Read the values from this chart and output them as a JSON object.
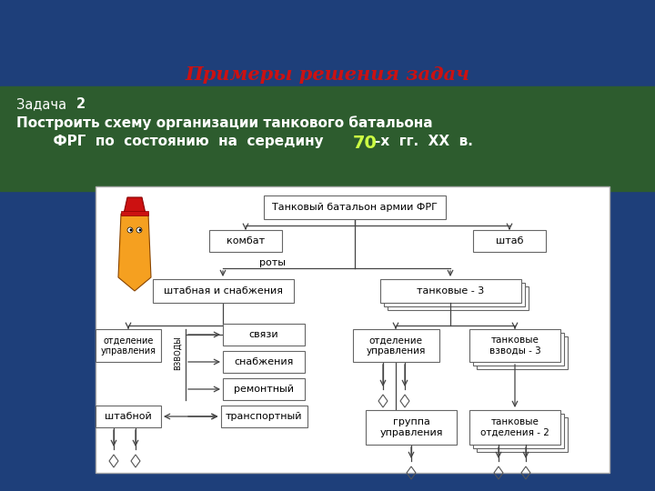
{
  "title_red": "Примеры решения задач",
  "zadacha_line1": "Задача2",
  "zadacha_bold2": "2",
  "zadacha_line2a": "Построить схему организации танкового батальона",
  "zadacha_line2b": "  ФРГ  по  состоянию  на  середину ",
  "zadacha_70": "70",
  "zadacha_line2c": "-х  гг.  ХХ  в.",
  "bg_blue": "#1e3f7a",
  "bg_green": "#2d5c2e",
  "diagram_bg": "#ffffff",
  "box_edge": "#666666",
  "vzvody_label": "ВЗВОДЫ",
  "nodes_battalion": "Танковый батальон армии ФРГ",
  "nodes_kombat": "комбат",
  "nodes_shtab": "штаб",
  "nodes_roty": "роты",
  "nodes_shtabnaya": "штабная и снабжения",
  "nodes_tankovye": "танковые - 3",
  "nodes_otd_l": "отделение\nуправления",
  "nodes_svyazi": "связи",
  "nodes_snab": "снабжения",
  "nodes_rem": "ремонтный",
  "nodes_transp": "транспортный",
  "nodes_shtabnoy": "штабной",
  "nodes_otd_r": "отделение\nуправления",
  "nodes_tank_vzv": "танковые\nвзводы - 3",
  "nodes_gruppa": "группа\nуправления",
  "nodes_tank_otd": "танковые\nотделения - 2"
}
